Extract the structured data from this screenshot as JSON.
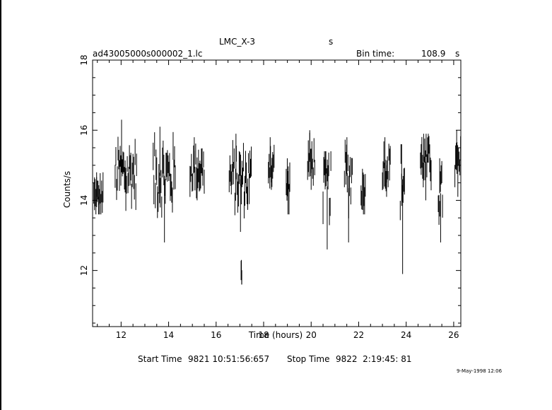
{
  "header": {
    "source": "LMC_X-3",
    "unit_s": "s",
    "file": "ad43005000s000002_1.lc",
    "bin_label": "Bin time:",
    "bin_value": "108.9",
    "bin_unit": "s"
  },
  "footer": {
    "start_label": "Start Time",
    "start_value": "9821 10:51:56:657",
    "stop_label": "Stop Time",
    "stop_value": "9822  2:19:45: 81",
    "date_stamp": "9-May-1998 12:06"
  },
  "chart_data": {
    "type": "scatter",
    "style": "error-bars",
    "xlabel": "Time (hours)",
    "ylabel": "Counts/s",
    "xlim": [
      10.8,
      26.3
    ],
    "ylim": [
      10.4,
      18.0
    ],
    "xticks": [
      12,
      14,
      16,
      18,
      20,
      22,
      24,
      26
    ],
    "yticks": [
      12,
      14,
      16,
      18
    ],
    "grid": false,
    "segments": [
      {
        "start": 10.85,
        "end": 11.25,
        "mean": 14.1,
        "yMin": 13.6,
        "yMax": 14.8
      },
      {
        "start": 11.75,
        "end": 12.65,
        "mean": 14.8,
        "yMin": 13.7,
        "yMax": 16.3
      },
      {
        "start": 13.35,
        "end": 14.3,
        "mean": 14.7,
        "yMin": 12.8,
        "yMax": 16.1
      },
      {
        "start": 14.9,
        "end": 15.5,
        "mean": 14.9,
        "yMin": 14.0,
        "yMax": 15.8
      },
      {
        "start": 16.55,
        "end": 17.5,
        "mean": 14.6,
        "yMin": 13.1,
        "yMax": 15.9
      },
      {
        "start": 17.05,
        "end": 17.1,
        "mean": 11.9,
        "yMin": 11.6,
        "yMax": 12.3
      },
      {
        "start": 18.2,
        "end": 18.45,
        "mean": 15.0,
        "yMin": 14.3,
        "yMax": 15.8
      },
      {
        "start": 18.95,
        "end": 19.1,
        "mean": 14.4,
        "yMin": 13.6,
        "yMax": 15.2
      },
      {
        "start": 19.85,
        "end": 20.15,
        "mean": 15.1,
        "yMin": 14.3,
        "yMax": 16.0
      },
      {
        "start": 20.5,
        "end": 20.85,
        "mean": 14.4,
        "yMin": 12.6,
        "yMax": 15.4
      },
      {
        "start": 21.4,
        "end": 21.75,
        "mean": 14.7,
        "yMin": 12.8,
        "yMax": 15.8
      },
      {
        "start": 22.1,
        "end": 22.3,
        "mean": 14.3,
        "yMin": 13.6,
        "yMax": 14.9
      },
      {
        "start": 23.0,
        "end": 23.35,
        "mean": 15.0,
        "yMin": 14.1,
        "yMax": 15.8
      },
      {
        "start": 23.75,
        "end": 23.95,
        "mean": 14.6,
        "yMin": 11.9,
        "yMax": 15.6
      },
      {
        "start": 24.6,
        "end": 25.05,
        "mean": 15.1,
        "yMin": 14.0,
        "yMax": 15.9
      },
      {
        "start": 25.35,
        "end": 25.55,
        "mean": 14.2,
        "yMin": 12.8,
        "yMax": 15.2
      },
      {
        "start": 26.05,
        "end": 26.3,
        "mean": 15.0,
        "yMin": 14.1,
        "yMax": 16.0
      }
    ]
  }
}
